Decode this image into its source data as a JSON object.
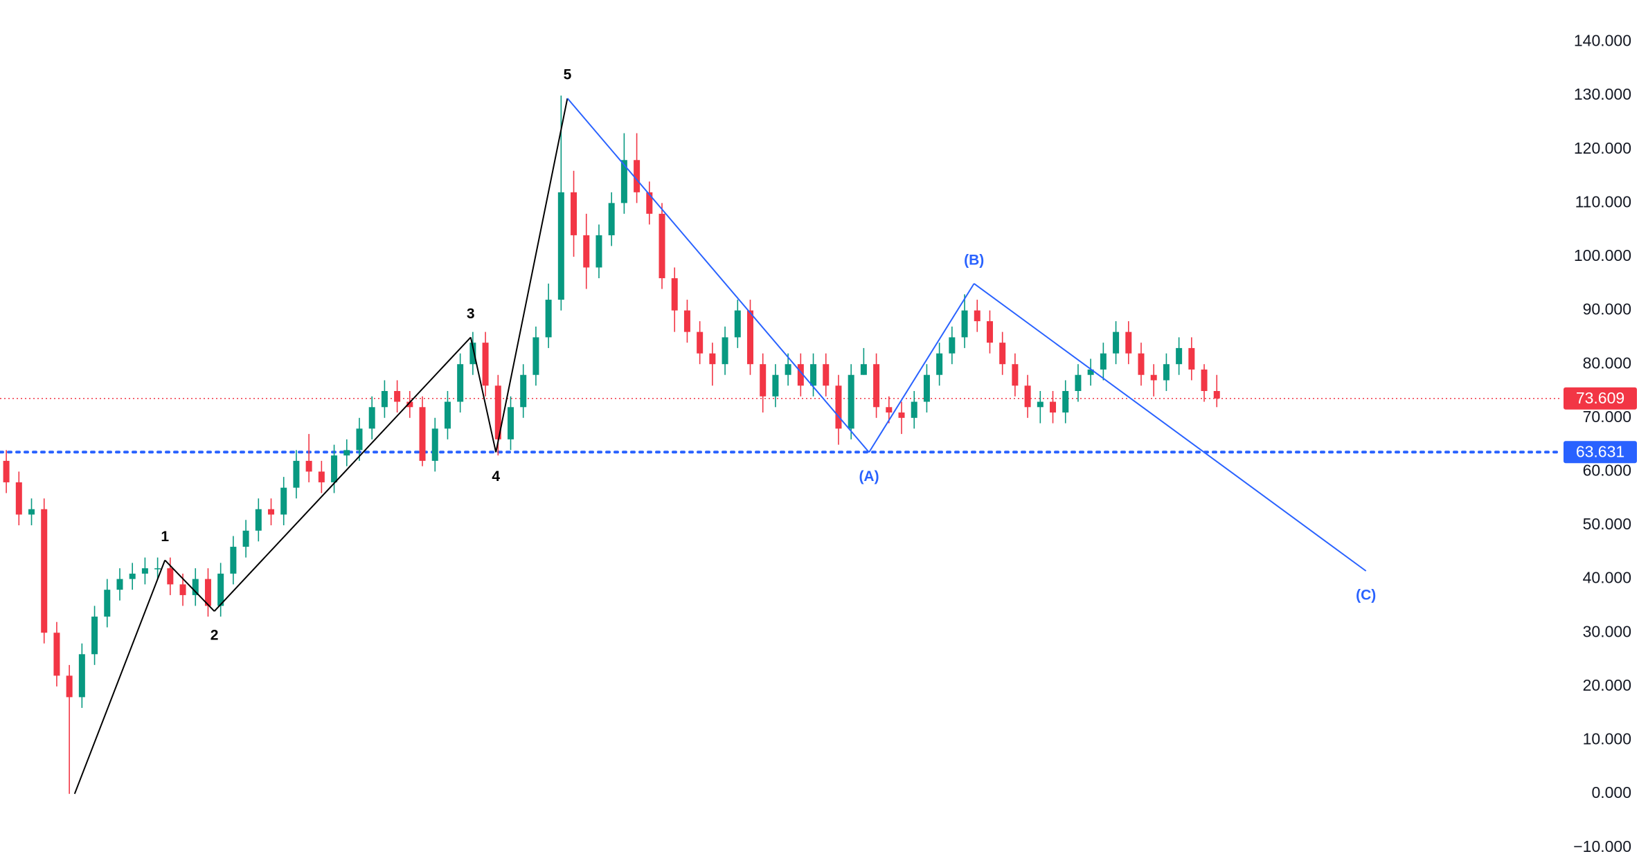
{
  "chart_data": {
    "type": "candlestick",
    "up_color": "#089981",
    "down_color": "#f23645",
    "ylim": [
      -11.2,
      147.8
    ],
    "yticks": [
      {
        "value": -10,
        "label": "−10.000"
      },
      {
        "value": 0,
        "label": "0.000"
      },
      {
        "value": 10,
        "label": "10.000"
      },
      {
        "value": 20,
        "label": "20.000"
      },
      {
        "value": 30,
        "label": "30.000"
      },
      {
        "value": 40,
        "label": "40.000"
      },
      {
        "value": 50,
        "label": "50.000"
      },
      {
        "value": 60,
        "label": "60.000"
      },
      {
        "value": 70,
        "label": "70.000"
      },
      {
        "value": 80,
        "label": "80.000"
      },
      {
        "value": 90,
        "label": "90.000"
      },
      {
        "value": 100,
        "label": "100.000"
      },
      {
        "value": 110,
        "label": "110.000"
      },
      {
        "value": 120,
        "label": "120.000"
      },
      {
        "value": 130,
        "label": "130.000"
      },
      {
        "value": 140,
        "label": "140.000"
      }
    ],
    "open": [
      62,
      58,
      52,
      53,
      30,
      22,
      18,
      26,
      33,
      38,
      40,
      41,
      42,
      42,
      39,
      37,
      40,
      35,
      41,
      46,
      49,
      53,
      52,
      57,
      62,
      60,
      58,
      63,
      64,
      68,
      72,
      75,
      73,
      72,
      62,
      68,
      73,
      80,
      84,
      76,
      66,
      72,
      78,
      85,
      92,
      112,
      104,
      98,
      104,
      110,
      118,
      112,
      108,
      96,
      90,
      86,
      82,
      80,
      85,
      90,
      80,
      74,
      78,
      80,
      76,
      80,
      76,
      68,
      78,
      80,
      72,
      71,
      70,
      73,
      78,
      82,
      85,
      90,
      88,
      84,
      80,
      76,
      72,
      73,
      71,
      75,
      78,
      79,
      82,
      86,
      82,
      78,
      77,
      80,
      83,
      79,
      75
    ],
    "high": [
      64,
      60,
      55,
      55,
      32,
      24,
      28,
      35,
      40,
      42,
      43,
      44,
      44,
      44,
      41,
      42,
      42,
      43,
      48,
      51,
      55,
      55,
      59,
      64,
      67,
      62,
      65,
      66,
      70,
      74,
      77,
      77,
      75,
      74,
      70,
      75,
      82,
      86,
      86,
      78,
      74,
      80,
      87,
      95,
      130,
      116,
      108,
      106,
      112,
      123,
      123,
      114,
      110,
      98,
      92,
      88,
      84,
      87,
      92,
      92,
      82,
      80,
      82,
      82,
      82,
      82,
      78,
      80,
      83,
      82,
      74,
      73,
      75,
      80,
      84,
      87,
      93,
      92,
      90,
      86,
      82,
      78,
      75,
      75,
      77,
      80,
      81,
      84,
      88,
      88,
      84,
      80,
      82,
      85,
      85,
      80,
      78
    ],
    "low": [
      56,
      50,
      50,
      28,
      20,
      0,
      16,
      24,
      31,
      36,
      38,
      39,
      40,
      37,
      35,
      35,
      33,
      33,
      39,
      44,
      47,
      50,
      50,
      55,
      58,
      56,
      56,
      61,
      62,
      66,
      70,
      71,
      70,
      61,
      60,
      66,
      71,
      78,
      74,
      63,
      64,
      70,
      76,
      83,
      90,
      100,
      94,
      96,
      102,
      108,
      110,
      106,
      94,
      86,
      84,
      80,
      76,
      78,
      83,
      78,
      71,
      72,
      76,
      74,
      74,
      74,
      65,
      66,
      78,
      70,
      69,
      67,
      68,
      71,
      76,
      80,
      83,
      86,
      82,
      78,
      74,
      70,
      69,
      69,
      69,
      73,
      76,
      77,
      80,
      80,
      76,
      74,
      75,
      78,
      77,
      73,
      72
    ],
    "close": [
      58,
      52,
      53,
      30,
      22,
      18,
      26,
      33,
      38,
      40,
      41,
      42,
      42,
      39,
      37,
      40,
      35,
      41,
      46,
      49,
      53,
      52,
      57,
      62,
      60,
      58,
      63,
      64,
      68,
      72,
      75,
      73,
      72,
      62,
      68,
      73,
      80,
      84,
      76,
      66,
      72,
      78,
      85,
      92,
      112,
      104,
      98,
      104,
      110,
      118,
      112,
      108,
      96,
      90,
      86,
      82,
      80,
      85,
      90,
      80,
      74,
      78,
      80,
      76,
      80,
      76,
      68,
      78,
      80,
      72,
      71,
      70,
      73,
      78,
      82,
      85,
      90,
      88,
      84,
      80,
      76,
      72,
      73,
      71,
      75,
      78,
      79,
      82,
      86,
      82,
      78,
      77,
      80,
      83,
      79,
      75,
      73.609
    ],
    "waves": [
      {
        "x": 5.42,
        "price": 0,
        "color": "#000000"
      },
      {
        "label": "1",
        "x": 12.58,
        "price": 43.5,
        "color": "#000000",
        "side": "above"
      },
      {
        "label": "2",
        "x": 16.5,
        "price": 34,
        "color": "#000000",
        "side": "below"
      },
      {
        "label": "3",
        "x": 36.83,
        "price": 85,
        "color": "#000000",
        "side": "above"
      },
      {
        "label": "4",
        "x": 38.83,
        "price": 63.6,
        "color": "#000000",
        "side": "below"
      },
      {
        "label": "5",
        "x": 44.5,
        "price": 129.5,
        "color": "#2962ff",
        "side": "above",
        "label_color": "#000000"
      },
      {
        "label": "(A)",
        "x": 68.42,
        "price": 63.6,
        "color": "#2962ff",
        "side": "below"
      },
      {
        "label": "(B)",
        "x": 76.75,
        "price": 95,
        "color": "#2962ff",
        "side": "above"
      },
      {
        "label": "(C)",
        "x": 107.83,
        "price": 41.5,
        "color": "#2962ff",
        "side": "below"
      }
    ],
    "levels": [
      {
        "value": 73.609,
        "color": "#f23645",
        "style": "thin"
      },
      {
        "value": 63.631,
        "color": "#2962ff",
        "style": "thick"
      }
    ]
  }
}
